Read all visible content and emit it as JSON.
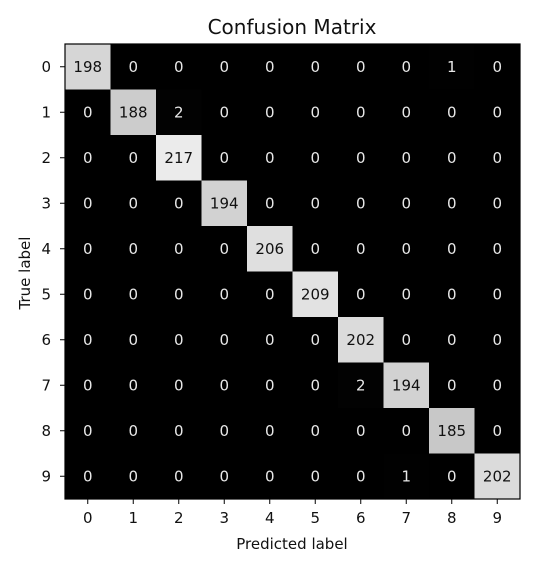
{
  "chart_data": {
    "type": "heatmap",
    "title": "Confusion Matrix",
    "xlabel": "Predicted label",
    "ylabel": "True label",
    "x_categories": [
      "0",
      "1",
      "2",
      "3",
      "4",
      "5",
      "6",
      "7",
      "8",
      "9"
    ],
    "y_categories": [
      "0",
      "1",
      "2",
      "3",
      "4",
      "5",
      "6",
      "7",
      "8",
      "9"
    ],
    "values": [
      [
        198,
        0,
        0,
        0,
        0,
        0,
        0,
        0,
        1,
        0
      ],
      [
        0,
        188,
        2,
        0,
        0,
        0,
        0,
        0,
        0,
        0
      ],
      [
        0,
        0,
        217,
        0,
        0,
        0,
        0,
        0,
        0,
        0
      ],
      [
        0,
        0,
        0,
        194,
        0,
        0,
        0,
        0,
        0,
        0
      ],
      [
        0,
        0,
        0,
        0,
        206,
        0,
        0,
        0,
        0,
        0
      ],
      [
        0,
        0,
        0,
        0,
        0,
        209,
        0,
        0,
        0,
        0
      ],
      [
        0,
        0,
        0,
        0,
        0,
        0,
        202,
        0,
        0,
        0
      ],
      [
        0,
        0,
        0,
        0,
        0,
        0,
        2,
        194,
        0,
        0
      ],
      [
        0,
        0,
        0,
        0,
        0,
        0,
        0,
        0,
        185,
        0
      ],
      [
        0,
        0,
        0,
        0,
        0,
        0,
        0,
        1,
        0,
        202
      ]
    ],
    "colormap": "gray",
    "value_range": [
      0,
      217
    ]
  }
}
